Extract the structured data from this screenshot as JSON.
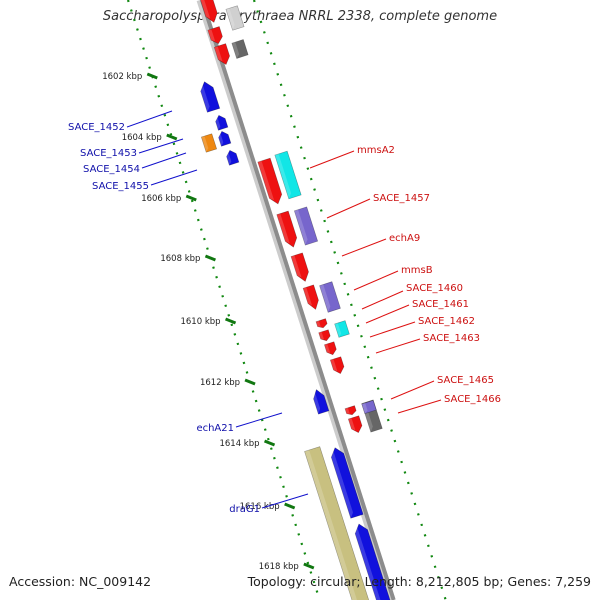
{
  "title": "Saccharopolyspora erythraea NRRL 2338, complete genome",
  "accession": "Accession: NC_009142",
  "topology": "Topology: circular; Length: 8,212,805 bp; Genes: 7,259",
  "colors": {
    "backbone": "#8c8c8c",
    "forward_tick": "#118811",
    "red_gene": "#ee1111",
    "blue_gene": "#1111dd",
    "cyan_feature": "#11e6e6",
    "purple_feature": "#7766cc",
    "gray_feature": "#666666",
    "orange_gene": "#ee8811",
    "olive_feature": "#c8c080"
  },
  "kbp_ticks": [
    {
      "label": "1602 kbp"
    },
    {
      "label": "1604 kbp"
    },
    {
      "label": "1606 kbp"
    },
    {
      "label": "1608 kbp"
    },
    {
      "label": "1610 kbp"
    },
    {
      "label": "1612 kbp"
    },
    {
      "label": "1614 kbp"
    },
    {
      "label": "1616 kbp"
    },
    {
      "label": "1618 kbp"
    }
  ],
  "left_labels": [
    {
      "text": "SACE_1452"
    },
    {
      "text": "SACE_1453"
    },
    {
      "text": "SACE_1454"
    },
    {
      "text": "SACE_1455"
    },
    {
      "text": "echA21"
    },
    {
      "text": "draG1"
    }
  ],
  "right_labels": [
    {
      "text": "mmsA2"
    },
    {
      "text": "SACE_1457"
    },
    {
      "text": "echA9"
    },
    {
      "text": "mmsB"
    },
    {
      "text": "SACE_1460"
    },
    {
      "text": "SACE_1461"
    },
    {
      "text": "SACE_1462"
    },
    {
      "text": "SACE_1463"
    },
    {
      "text": "SACE_1465"
    },
    {
      "text": "SACE_1466"
    }
  ]
}
